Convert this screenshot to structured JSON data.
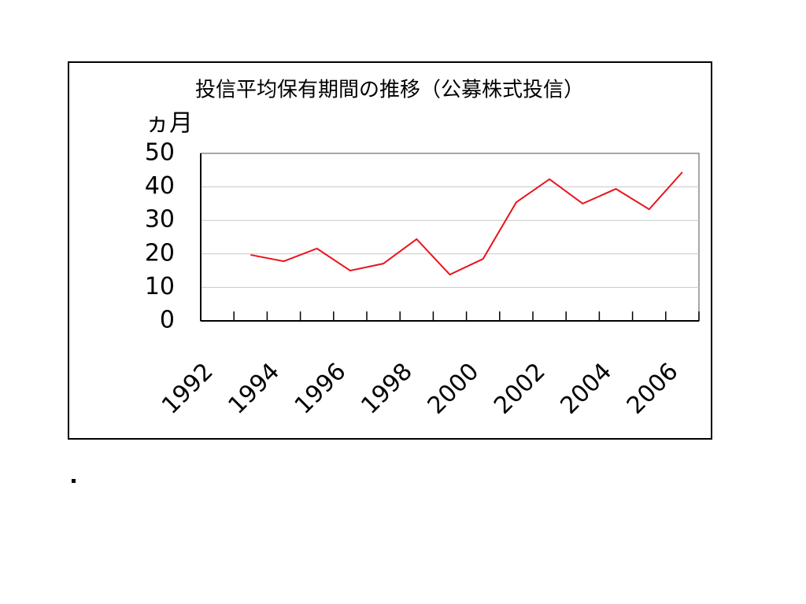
{
  "chart_data": {
    "type": "line",
    "title": "投信平均保有期間の推移（公募株式投信）",
    "y_label": "ヵ月",
    "categories": [
      "1992",
      null,
      "1994",
      null,
      "1996",
      null,
      "1998",
      null,
      "2000",
      null,
      "2002",
      null,
      "2004",
      null,
      "2006"
    ],
    "series": [
      {
        "name": null,
        "color": "#e8141c",
        "values": [
          null,
          19.7,
          17.8,
          21.6,
          15.0,
          17.1,
          24.4,
          13.8,
          18.5,
          35.4,
          42.3,
          35.0,
          39.4,
          33.3,
          44.4
        ]
      }
    ],
    "ylim": [
      0,
      50
    ],
    "yticks": [
      0,
      10,
      20,
      30,
      40,
      50
    ],
    "grid": true
  }
}
